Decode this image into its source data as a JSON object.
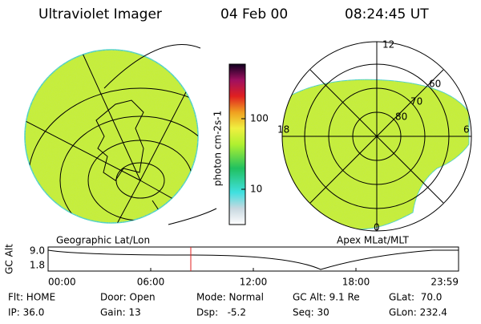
{
  "header": {
    "instrument": "Ultraviolet Imager",
    "date": "04 Feb 00",
    "time": "08:24:45 UT"
  },
  "colorbar": {
    "label": "photon cm-2s-1",
    "ticks": [
      "100",
      "10"
    ]
  },
  "left_panel": {
    "caption": "Geographic Lat/Lon"
  },
  "right_panel": {
    "caption": "Apex MLat/MLT",
    "mlt_labels": [
      "12",
      "18",
      "6",
      "0"
    ],
    "lat_labels": [
      "80",
      "70",
      "60"
    ]
  },
  "alt_plot": {
    "ylabel": "GC Alt",
    "yticks": [
      "9.0",
      "1.8"
    ],
    "xticks": [
      "00:00",
      "06:00",
      "12:00",
      "18:00",
      "23:59"
    ]
  },
  "info": {
    "rows": [
      [
        "Flt: HOME",
        "Door: Open",
        "Mode: Normal",
        "GC Alt: 9.1 Re",
        "GLat:  70.0"
      ],
      [
        "IP: 36.0",
        "Gain: 13",
        "Dsp:   -5.2",
        "Seq: 30",
        "GLon: 232.4"
      ]
    ]
  }
}
